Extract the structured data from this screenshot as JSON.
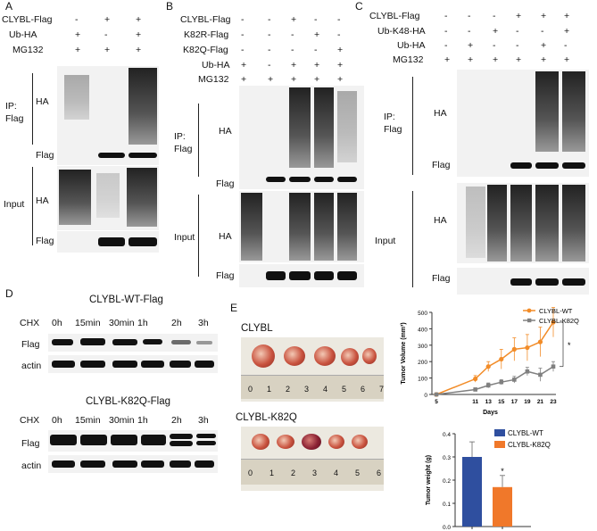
{
  "panels": {
    "A": "A",
    "B": "B",
    "C": "C",
    "D": "D",
    "E": "E"
  },
  "A": {
    "rows": [
      {
        "label": "CLYBL-Flag",
        "vals": [
          "-",
          "+",
          "+"
        ]
      },
      {
        "label": "Ub-HA",
        "vals": [
          "+",
          "-",
          "+"
        ]
      },
      {
        "label": "MG132",
        "vals": [
          "+",
          "+",
          "+"
        ]
      }
    ],
    "ip": "IP:\nFlag",
    "input": "Input",
    "ha": "HA",
    "flag": "Flag"
  },
  "B": {
    "rows": [
      {
        "label": "CLYBL-Flag",
        "vals": [
          "-",
          "-",
          "+",
          "-",
          "-"
        ]
      },
      {
        "label": "K82R-Flag",
        "vals": [
          "-",
          "-",
          "-",
          "+",
          "-"
        ]
      },
      {
        "label": "K82Q-Flag",
        "vals": [
          "-",
          "-",
          "-",
          "-",
          "+"
        ]
      },
      {
        "label": "Ub-HA",
        "vals": [
          "+",
          "-",
          "+",
          "+",
          "+"
        ]
      },
      {
        "label": "MG132",
        "vals": [
          "+",
          "+",
          "+",
          "+",
          "+"
        ]
      }
    ],
    "ip": "IP:\nFlag",
    "input": "Input",
    "ha": "HA",
    "flag": "Flag"
  },
  "C": {
    "rows": [
      {
        "label": "CLYBL-Flag",
        "vals": [
          "-",
          "-",
          "-",
          "+",
          "+",
          "+"
        ]
      },
      {
        "label": "Ub-K48-HA",
        "vals": [
          "-",
          "-",
          "+",
          "-",
          "-",
          "+"
        ]
      },
      {
        "label": "Ub-HA",
        "vals": [
          "-",
          "+",
          "-",
          "-",
          "+",
          "-"
        ]
      },
      {
        "label": "MG132",
        "vals": [
          "+",
          "+",
          "+",
          "+",
          "+",
          "+"
        ]
      }
    ],
    "ip": "IP:\nFlag",
    "input": "Input",
    "ha": "HA",
    "flag": "Flag"
  },
  "D": {
    "title_wt": "CLYBL-WT-Flag",
    "title_k82q": "CLYBL-K82Q-Flag",
    "chx": "CHX",
    "times": [
      "0h",
      "15min",
      "30min",
      "1h",
      "2h",
      "3h"
    ],
    "flag": "Flag",
    "actin": "actin"
  },
  "E": {
    "label_wt": "CLYBL",
    "label_k82q": "CLYBL-K82Q",
    "ruler_ticks": [
      "0",
      "1",
      "2",
      "3",
      "4",
      "5",
      "6",
      "7"
    ],
    "ruler_ticks_b": [
      "0",
      "1",
      "2",
      "3",
      "4",
      "5",
      "6"
    ]
  },
  "colors": {
    "wt": "#f28c28",
    "k82q": "#808080",
    "bar_wt": "#2f4f9f",
    "bar_k82q": "#f0782a"
  },
  "chart_data": [
    {
      "type": "line",
      "xlabel": "Days",
      "ylabel": "Tumor Volume (mm³)",
      "x": [
        5,
        11,
        13,
        15,
        17,
        19,
        21,
        23
      ],
      "ylim": [
        0,
        500
      ],
      "yticks": [
        0,
        100,
        200,
        300,
        400,
        500
      ],
      "series": [
        {
          "name": "CLYBL-WT",
          "values": [
            0,
            95,
            170,
            215,
            275,
            285,
            320,
            440
          ],
          "err": [
            5,
            20,
            30,
            60,
            70,
            80,
            90,
            90
          ]
        },
        {
          "name": "CLYBL-K82Q",
          "values": [
            0,
            30,
            55,
            75,
            90,
            140,
            120,
            170
          ],
          "err": [
            3,
            10,
            15,
            15,
            20,
            25,
            40,
            30
          ]
        }
      ],
      "annotation": "*",
      "legend": "top-right"
    },
    {
      "type": "bar",
      "ylabel": "Tumor weight (g)",
      "categories": [
        "CLYBL-WT",
        "CLYBL-K82Q"
      ],
      "values": [
        0.3,
        0.17
      ],
      "err": [
        0.065,
        0.05
      ],
      "ylim": [
        0,
        0.4
      ],
      "yticks": [
        "0.0",
        "0.1",
        "0.2",
        "0.3",
        "0.4"
      ],
      "annotation": "*",
      "legend": "top-right"
    }
  ]
}
